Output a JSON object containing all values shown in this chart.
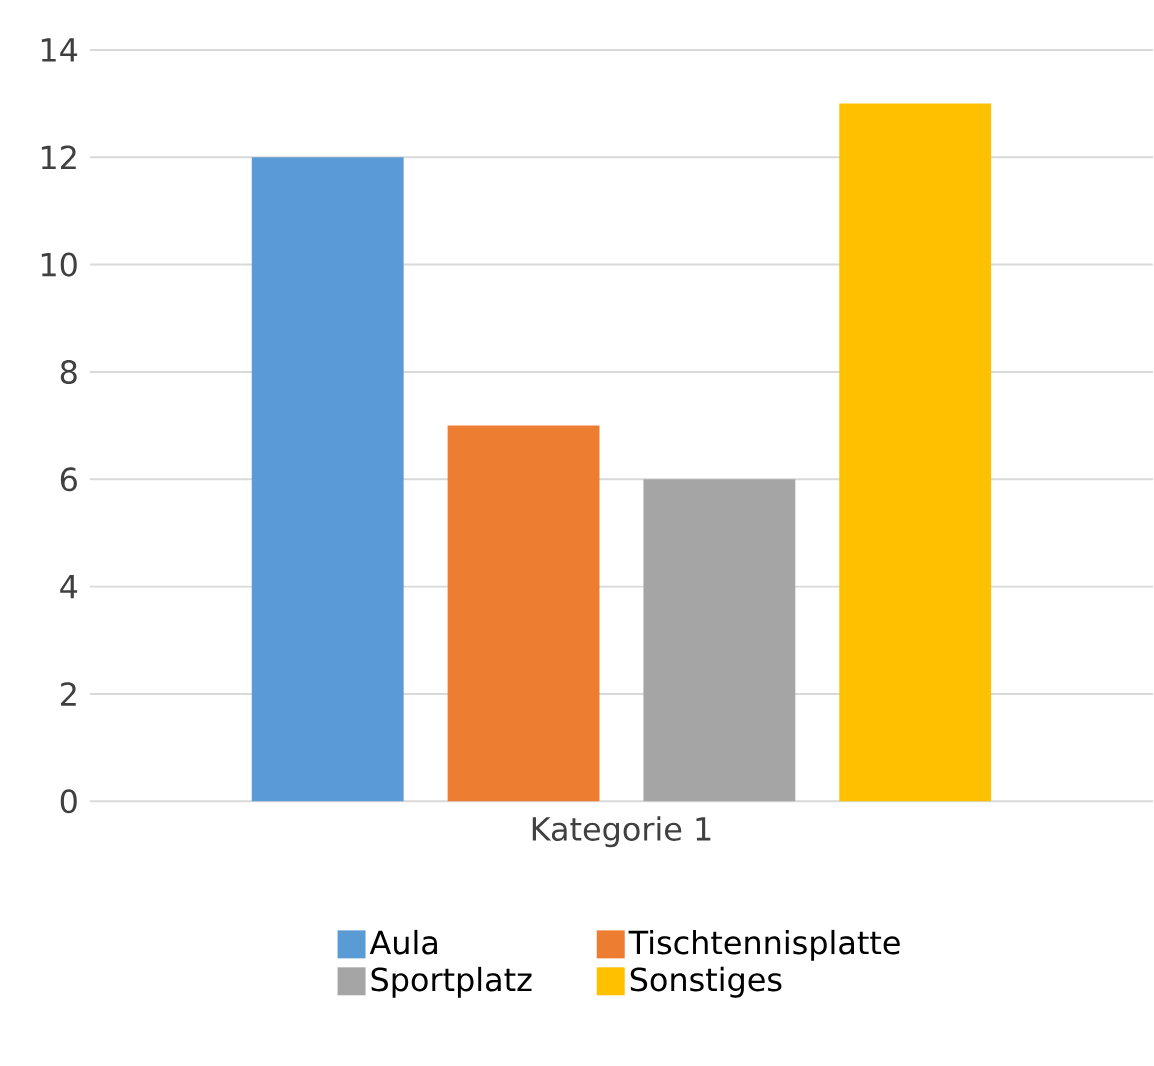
{
  "chart_data": {
    "type": "bar",
    "categories": [
      "Kategorie 1"
    ],
    "series": [
      {
        "name": "Aula",
        "color": "#5b9bd5",
        "values": [
          12
        ]
      },
      {
        "name": "Tischtennisplatte",
        "color": "#ed7d31",
        "values": [
          7
        ]
      },
      {
        "name": "Sportplatz",
        "color": "#a5a5a5",
        "values": [
          6
        ]
      },
      {
        "name": "Sonstiges",
        "color": "#ffc000",
        "values": [
          13
        ]
      }
    ],
    "ylim": [
      0,
      14
    ],
    "yticks": [
      0,
      2,
      4,
      6,
      8,
      10,
      12,
      14
    ],
    "grid": "y",
    "legend": "bottom"
  }
}
